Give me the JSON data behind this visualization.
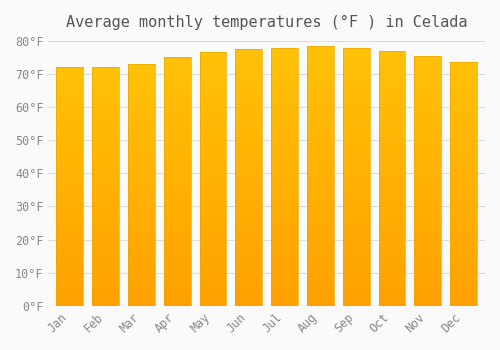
{
  "title": "Average monthly temperatures (°F ) in Celada",
  "months": [
    "Jan",
    "Feb",
    "Mar",
    "Apr",
    "May",
    "Jun",
    "Jul",
    "Aug",
    "Sep",
    "Oct",
    "Nov",
    "Dec"
  ],
  "values": [
    72,
    72,
    73,
    75,
    76.5,
    77.5,
    78,
    78.5,
    78,
    77,
    75.5,
    73.5
  ],
  "ylim": [
    0,
    80
  ],
  "yticks": [
    0,
    10,
    20,
    30,
    40,
    50,
    60,
    70,
    80
  ],
  "ytick_labels": [
    "0°F",
    "10°F",
    "20°F",
    "30°F",
    "40°F",
    "50°F",
    "60°F",
    "70°F",
    "80°F"
  ],
  "bar_color_top": "#FFC107",
  "bar_color_bottom": "#FFA000",
  "background_color": "#FAFAFA",
  "grid_color": "#DDDDDD",
  "title_fontsize": 11,
  "tick_fontsize": 8.5,
  "bar_edge_color": "#E8A800",
  "bar_width": 0.75
}
